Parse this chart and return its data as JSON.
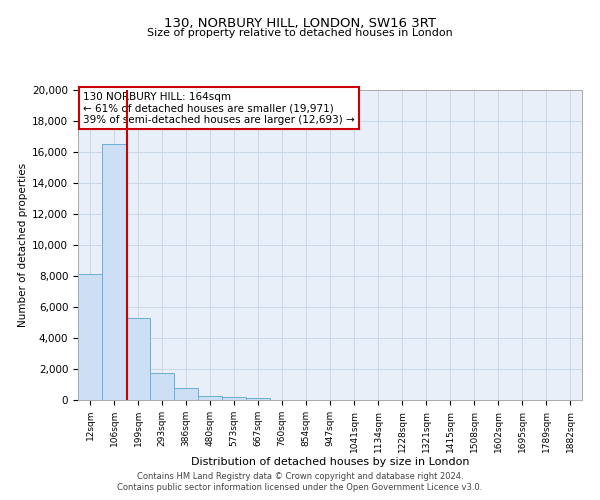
{
  "title": "130, NORBURY HILL, LONDON, SW16 3RT",
  "subtitle": "Size of property relative to detached houses in London",
  "xlabel": "Distribution of detached houses by size in London",
  "ylabel": "Number of detached properties",
  "bar_labels": [
    "12sqm",
    "106sqm",
    "199sqm",
    "293sqm",
    "386sqm",
    "480sqm",
    "573sqm",
    "667sqm",
    "760sqm",
    "854sqm",
    "947sqm",
    "1041sqm",
    "1134sqm",
    "1228sqm",
    "1321sqm",
    "1415sqm",
    "1508sqm",
    "1602sqm",
    "1695sqm",
    "1789sqm",
    "1882sqm"
  ],
  "bar_values": [
    8100,
    16500,
    5300,
    1750,
    750,
    280,
    200,
    130,
    0,
    0,
    0,
    0,
    0,
    0,
    0,
    0,
    0,
    0,
    0,
    0,
    0
  ],
  "bar_color": "#ccdff5",
  "bar_edge_color": "#6baed6",
  "ylim": [
    0,
    20000
  ],
  "yticks": [
    0,
    2000,
    4000,
    6000,
    8000,
    10000,
    12000,
    14000,
    16000,
    18000,
    20000
  ],
  "vline_x": 1.55,
  "vline_color": "#cc0000",
  "annotation_box_text": "130 NORBURY HILL: 164sqm\n← 61% of detached houses are smaller (19,971)\n39% of semi-detached houses are larger (12,693) →",
  "footer_line1": "Contains HM Land Registry data © Crown copyright and database right 2024.",
  "footer_line2": "Contains public sector information licensed under the Open Government Licence v3.0.",
  "background_color": "#ffffff",
  "plot_bg_color": "#e8eff8",
  "grid_color": "#c8d8e8"
}
